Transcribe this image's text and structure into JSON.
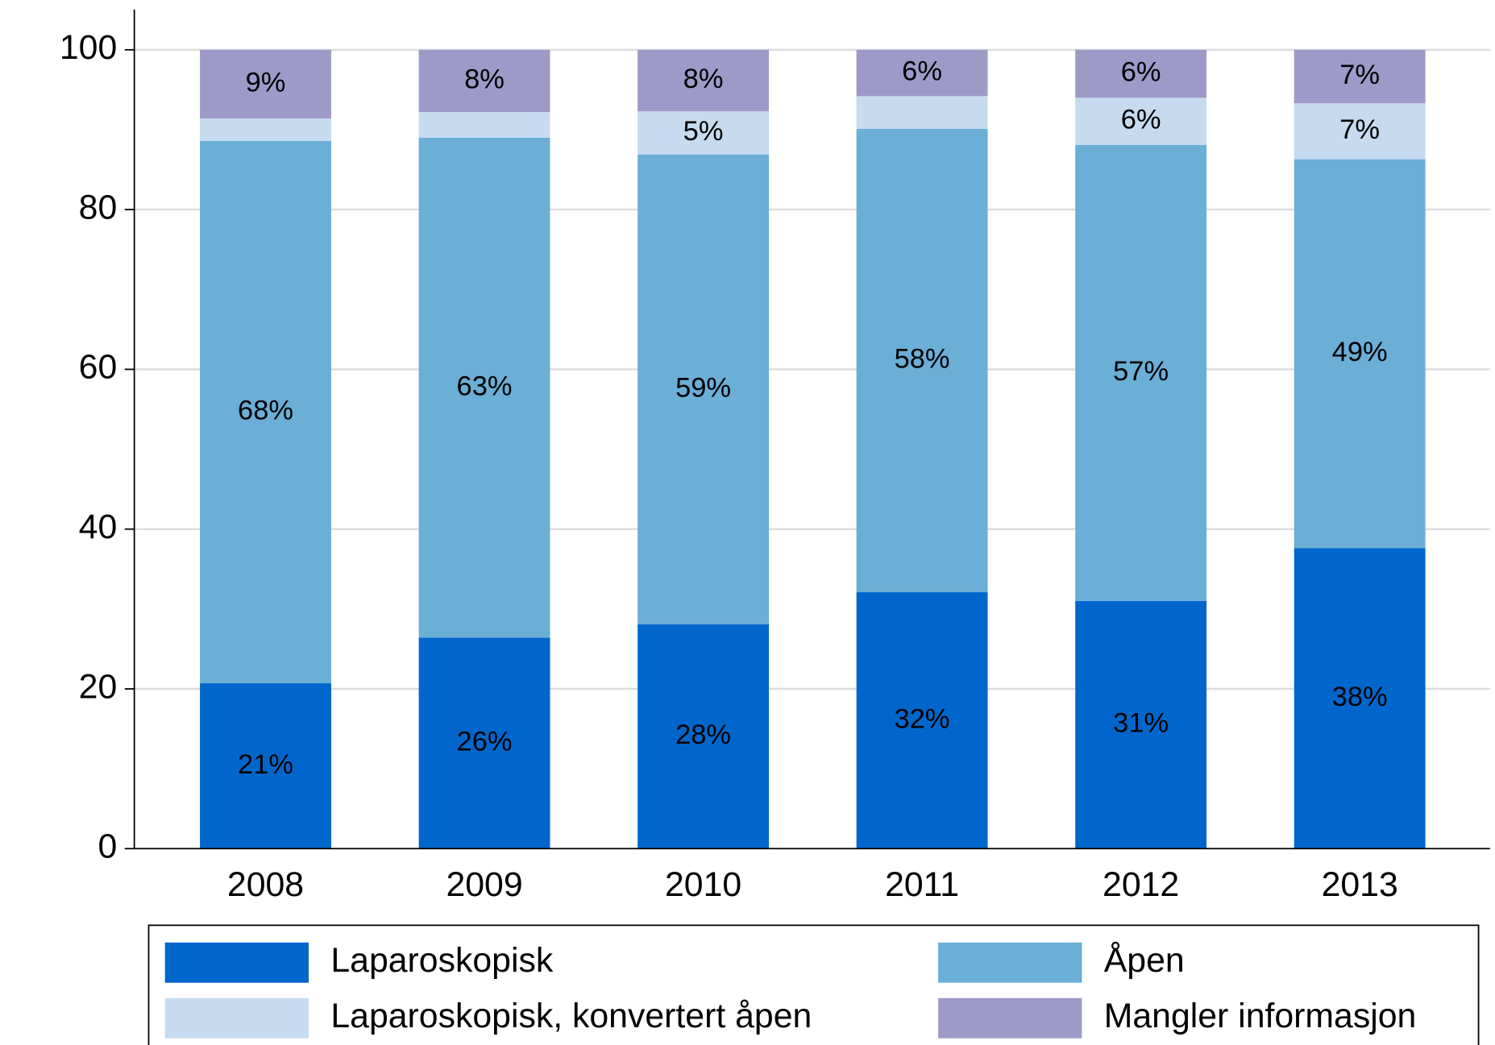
{
  "chart_data": {
    "type": "stacked_bar",
    "categories": [
      "2008",
      "2009",
      "2010",
      "2011",
      "2012",
      "2013"
    ],
    "series": [
      {
        "name": "Laparoskopisk",
        "color": "#0066cc",
        "values": [
          20.7,
          26.4,
          28.1,
          32.1,
          31.0,
          37.6
        ],
        "value_labels": [
          "21%",
          "26%",
          "28%",
          "32%",
          "31%",
          "38%"
        ]
      },
      {
        "name": "Åpen",
        "color": "#6baed6",
        "values": [
          67.9,
          62.6,
          58.8,
          58.0,
          57.1,
          48.7
        ],
        "value_labels": [
          "68%",
          "63%",
          "59%",
          "58%",
          "57%",
          "49%"
        ]
      },
      {
        "name": "Laparoskopisk, konvertert åpen",
        "color": "#c6dbef",
        "values": [
          2.8,
          3.2,
          5.4,
          4.1,
          5.9,
          7.0
        ],
        "value_labels": [
          null,
          null,
          "5%",
          null,
          "6%",
          "7%"
        ]
      },
      {
        "name": "Mangler informasjon",
        "color": "#9e9ac8",
        "values": [
          8.6,
          7.8,
          7.7,
          5.8,
          6.0,
          6.7
        ],
        "value_labels": [
          "9%",
          "8%",
          "8%",
          "6%",
          "6%",
          "7%"
        ]
      }
    ],
    "ylim": [
      0,
      100
    ],
    "yticks": [
      0,
      20,
      40,
      60,
      80,
      100
    ],
    "grid": true,
    "legend": "bottom"
  }
}
